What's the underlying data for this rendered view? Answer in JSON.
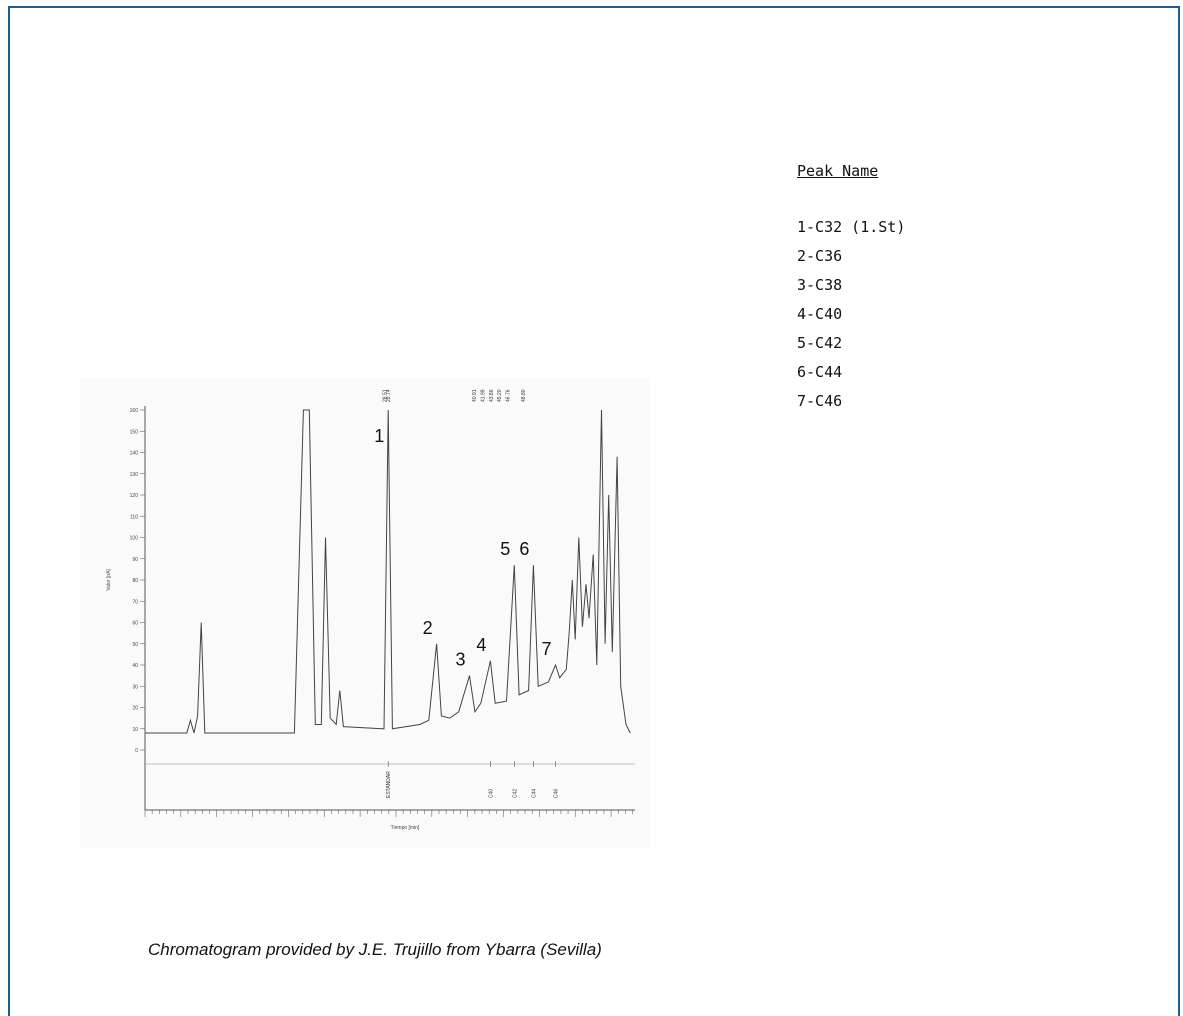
{
  "legend": {
    "title": "Peak Name",
    "items": [
      "1-C32 (1.St)",
      "2-C36",
      "3-C38",
      "4-C40",
      "5-C42",
      "6-C44",
      "7-C46"
    ]
  },
  "caption": "Chromatogram provided by J.E. Trujillo from Ybarra (Sevilla)",
  "chart_data": {
    "type": "line",
    "title": "",
    "xlabel": "Tiempo [min]",
    "ylabel": "Valor [pA]",
    "ylim": [
      0,
      160
    ],
    "yticks": [
      0,
      10,
      20,
      30,
      40,
      50,
      60,
      70,
      80,
      90,
      100,
      110,
      120,
      130,
      140,
      150,
      160
    ],
    "grid": false,
    "series": [
      {
        "values": [
          [
            0,
            8
          ],
          [
            3,
            8
          ],
          [
            3.5,
            8
          ],
          [
            7,
            8
          ],
          [
            7.6,
            14
          ],
          [
            8.2,
            8
          ],
          [
            8.8,
            16
          ],
          [
            9.4,
            60
          ],
          [
            10,
            8
          ],
          [
            25,
            8
          ],
          [
            26.5,
            160
          ],
          [
            27.5,
            160
          ],
          [
            28.5,
            12
          ],
          [
            29.5,
            12
          ],
          [
            30.2,
            100
          ],
          [
            31,
            15
          ],
          [
            32,
            12
          ],
          [
            32.6,
            28
          ],
          [
            33.2,
            11
          ],
          [
            40,
            10
          ],
          [
            40.7,
            160
          ],
          [
            41.4,
            10
          ],
          [
            46,
            12
          ],
          [
            47.5,
            14
          ],
          [
            48.8,
            50
          ],
          [
            49.6,
            16
          ],
          [
            51,
            15
          ],
          [
            52.5,
            18
          ],
          [
            54.3,
            35
          ],
          [
            55.2,
            18
          ],
          [
            56.2,
            22
          ],
          [
            57.8,
            42
          ],
          [
            58.6,
            22
          ],
          [
            60.5,
            23
          ],
          [
            61.8,
            87
          ],
          [
            62.6,
            26
          ],
          [
            64.2,
            28
          ],
          [
            65,
            87
          ],
          [
            65.8,
            30
          ],
          [
            67.5,
            32
          ],
          [
            68.7,
            40
          ],
          [
            69.4,
            34
          ],
          [
            70.5,
            38
          ],
          [
            71,
            56
          ],
          [
            71.5,
            80
          ],
          [
            72,
            52
          ],
          [
            72.6,
            100
          ],
          [
            73.2,
            58
          ],
          [
            73.8,
            78
          ],
          [
            74.3,
            62
          ],
          [
            75,
            92
          ],
          [
            75.6,
            40
          ],
          [
            76.4,
            160
          ],
          [
            77,
            50
          ],
          [
            77.6,
            120
          ],
          [
            78.2,
            46
          ],
          [
            79,
            138
          ],
          [
            79.6,
            30
          ],
          [
            80.5,
            12
          ],
          [
            81.2,
            8
          ]
        ]
      }
    ],
    "peaks": [
      {
        "label": "1",
        "compound": "C32",
        "rt": "28.51"
      },
      {
        "label": "2",
        "compound": "C36"
      },
      {
        "label": "3",
        "compound": "C38"
      },
      {
        "label": "4",
        "compound": "C40",
        "rt": "40.91"
      },
      {
        "label": "5",
        "compound": "C42",
        "rt": "41.99"
      },
      {
        "label": "6",
        "compound": "C44",
        "rt": "43.86"
      },
      {
        "label": "7",
        "compound": "C46",
        "rt": "46.80"
      }
    ],
    "rt_labels": [
      "28.51",
      "28.74",
      "40.91",
      "41.99",
      "43.86",
      "45.20",
      "46.76",
      "48.80"
    ],
    "baseline_labels": [
      "ESTANDAR",
      "C40",
      "C42",
      "C44",
      "C46"
    ]
  }
}
